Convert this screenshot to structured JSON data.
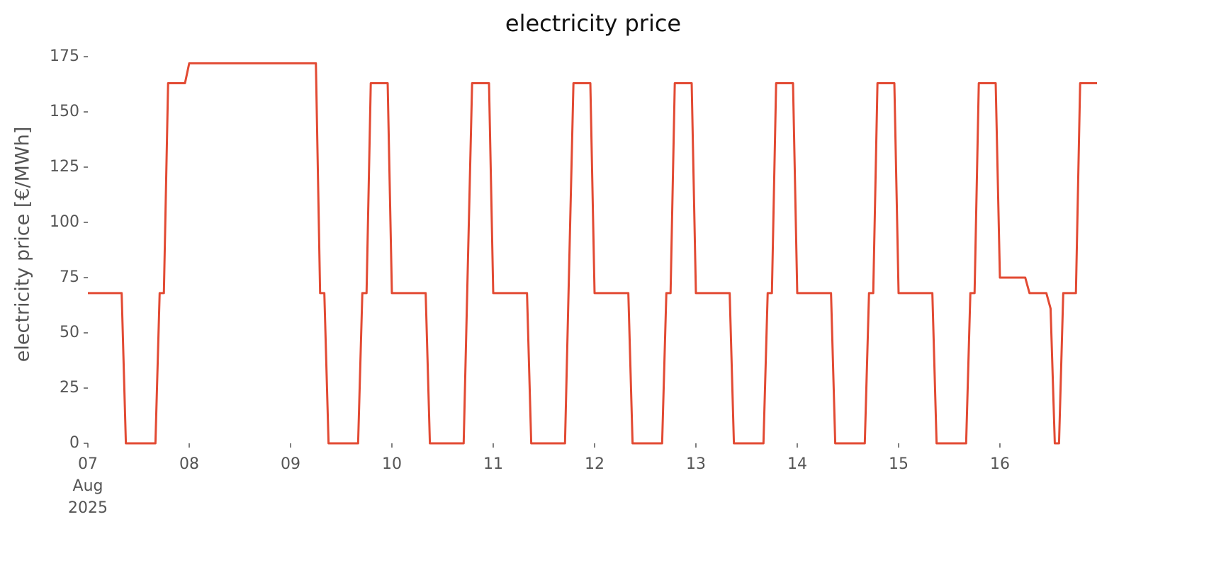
{
  "chart_data": {
    "type": "line",
    "title": "electricity price",
    "ylabel": "electricity price [€/MWh]",
    "x": [
      0,
      8,
      9,
      16,
      17,
      18,
      19,
      23,
      24,
      54,
      55,
      56,
      57,
      64,
      65,
      66,
      67,
      71,
      72,
      80,
      81,
      89,
      91,
      95,
      96,
      104,
      105,
      113,
      115,
      119,
      120,
      128,
      129,
      136,
      137,
      138,
      139,
      143,
      144,
      152,
      153,
      160,
      161,
      162,
      163,
      167,
      168,
      176,
      177,
      184,
      185,
      186,
      187,
      191,
      192,
      200,
      201,
      208,
      209,
      210,
      211,
      215,
      216,
      222,
      223,
      227,
      228,
      229,
      230,
      231,
      234,
      235,
      239
    ],
    "series": [
      {
        "name": "electricity price",
        "color": "#e24a33",
        "values": [
          68,
          68,
          0,
          0,
          68,
          68,
          163,
          163,
          172,
          172,
          68,
          68,
          0,
          0,
          68,
          68,
          163,
          163,
          68,
          68,
          0,
          0,
          163,
          163,
          68,
          68,
          0,
          0,
          163,
          163,
          68,
          68,
          0,
          0,
          68,
          68,
          163,
          163,
          68,
          68,
          0,
          0,
          68,
          68,
          163,
          163,
          68,
          68,
          0,
          0,
          68,
          68,
          163,
          163,
          68,
          68,
          0,
          0,
          68,
          68,
          163,
          163,
          75,
          75,
          68,
          68,
          61,
          0,
          0,
          68,
          68,
          163,
          163
        ]
      }
    ],
    "xlim": [
      0,
      239
    ],
    "xticks": [
      {
        "value": 0,
        "label": "07\nAug\n2025"
      },
      {
        "value": 24,
        "label": "08"
      },
      {
        "value": 48,
        "label": "09"
      },
      {
        "value": 72,
        "label": "10"
      },
      {
        "value": 96,
        "label": "11"
      },
      {
        "value": 120,
        "label": "12"
      },
      {
        "value": 144,
        "label": "13"
      },
      {
        "value": 168,
        "label": "14"
      },
      {
        "value": 192,
        "label": "15"
      },
      {
        "value": 216,
        "label": "16"
      }
    ],
    "ylim": [
      0,
      175
    ],
    "yticks": [
      0,
      25,
      50,
      75,
      100,
      125,
      150,
      175
    ],
    "grid": false
  }
}
